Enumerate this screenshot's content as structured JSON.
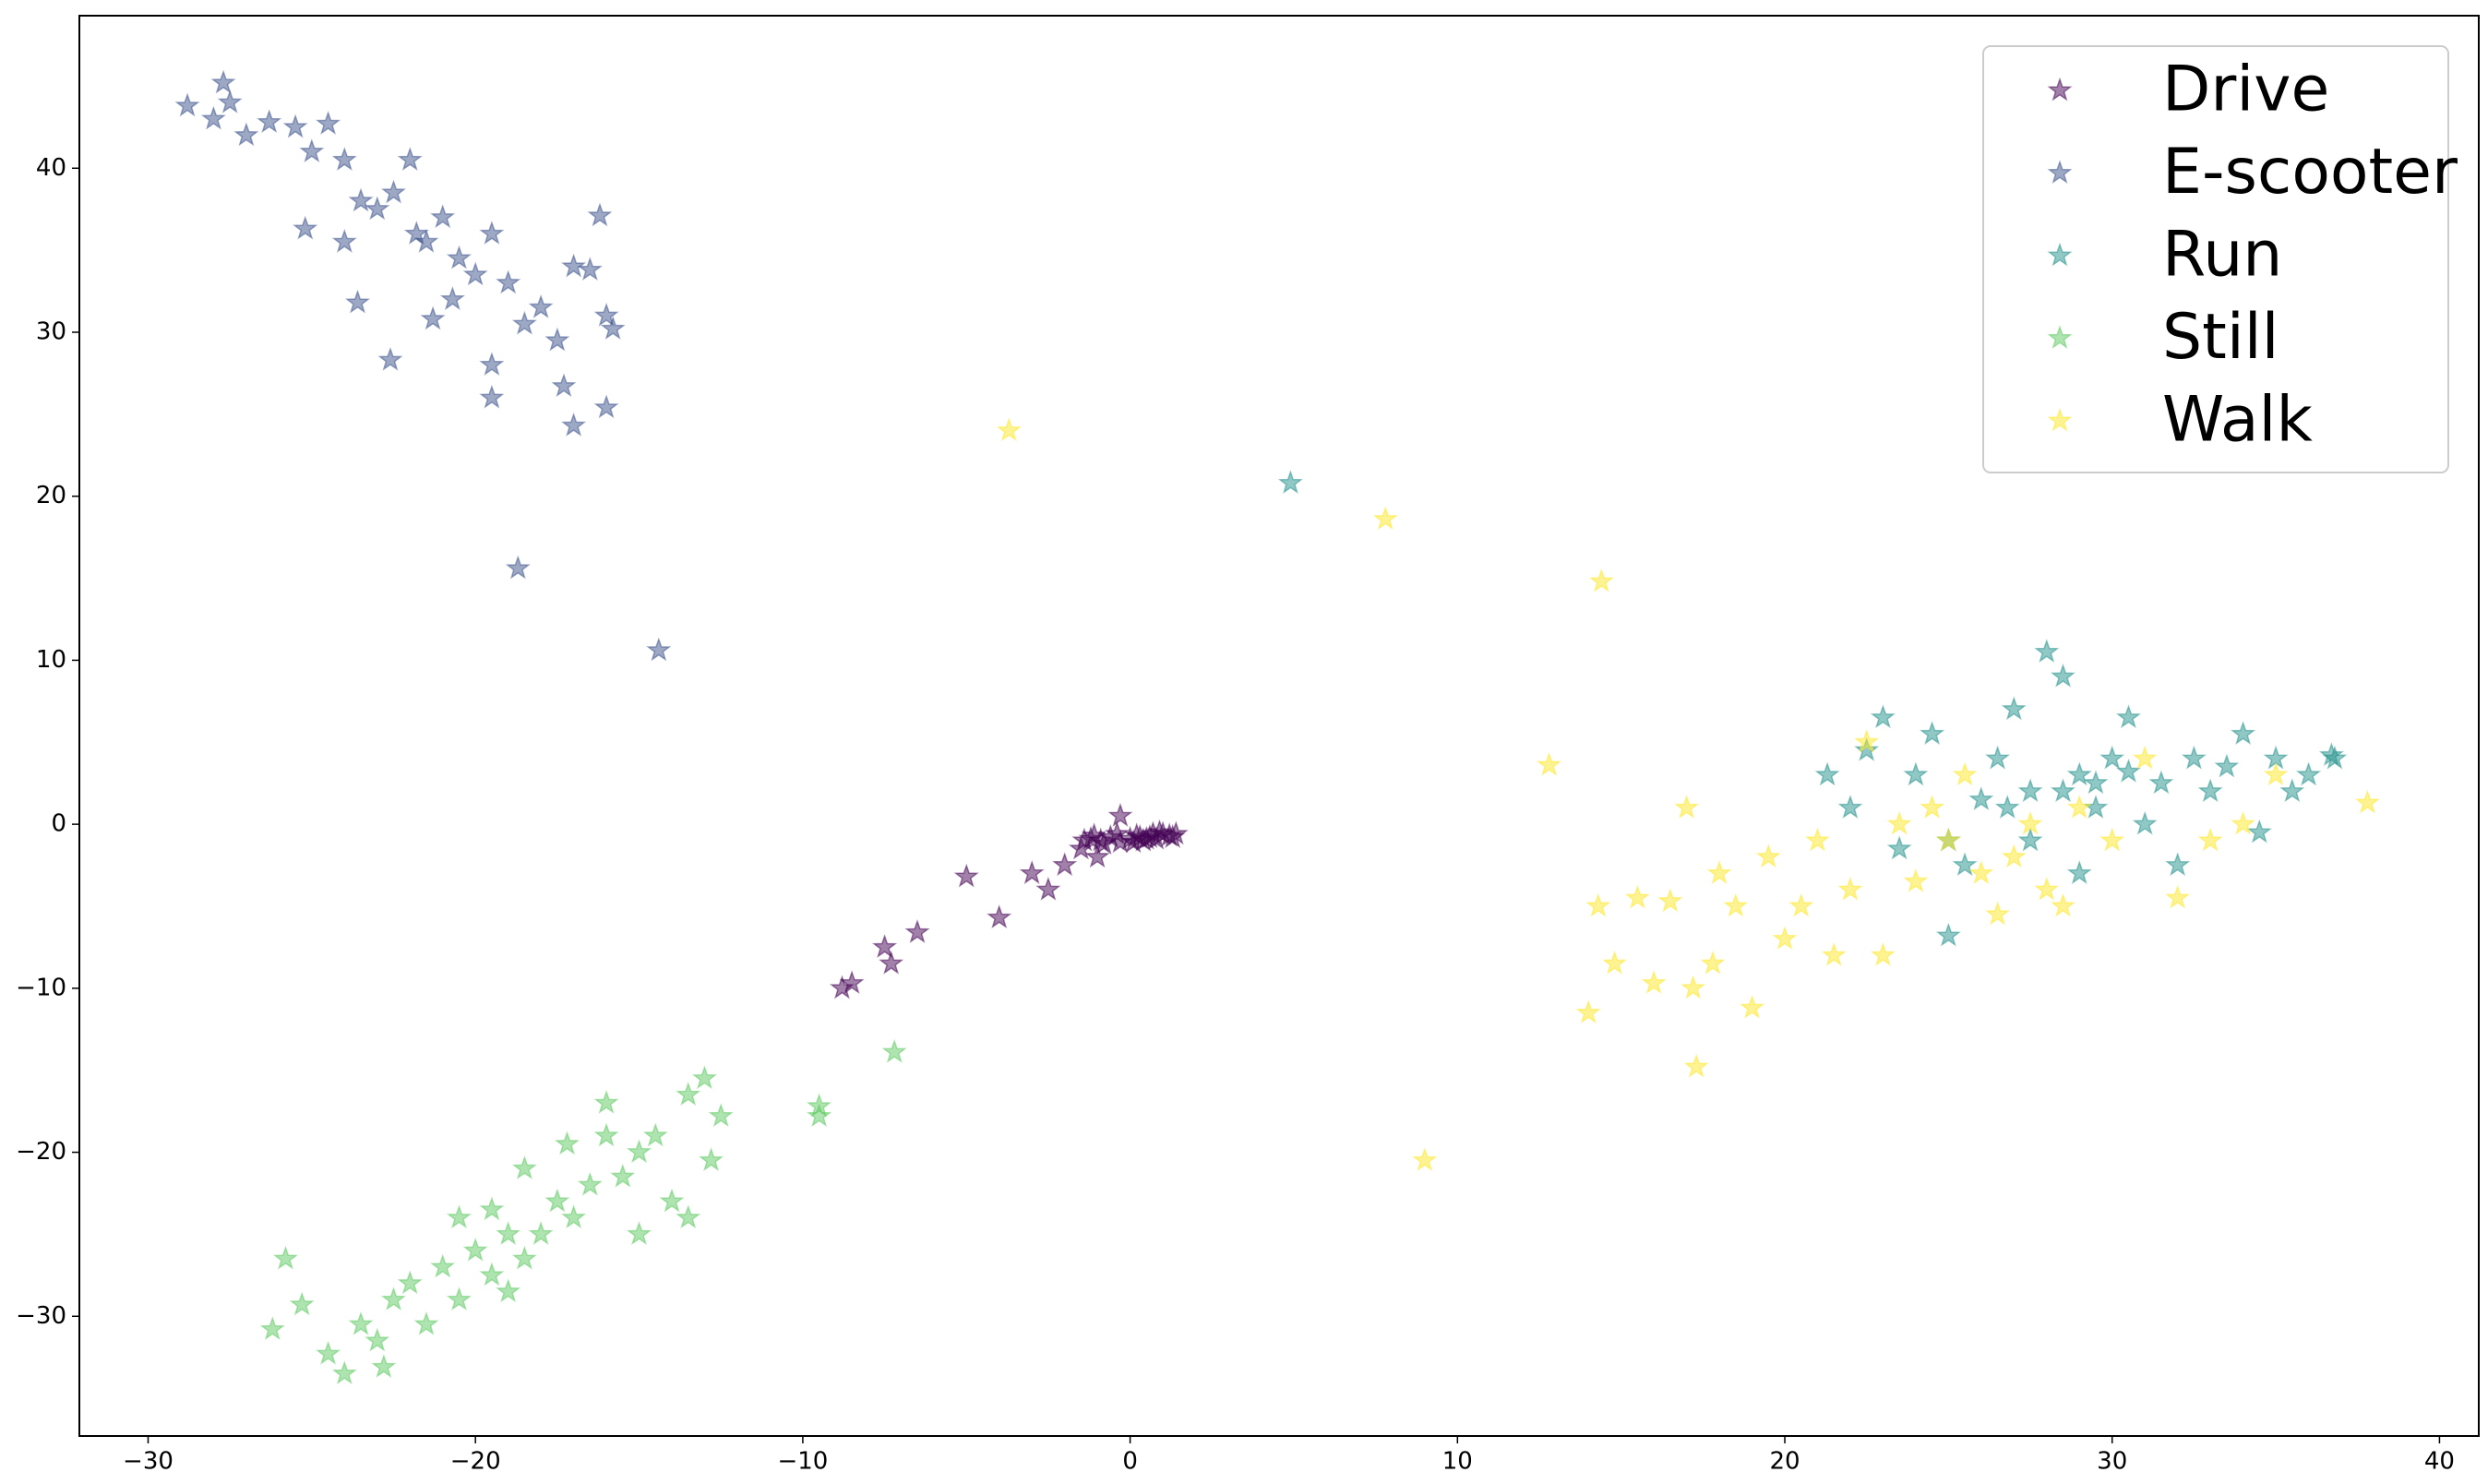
{
  "chart_data": {
    "type": "scatter",
    "xlim": [
      -32.1,
      41.2
    ],
    "ylim": [
      -37.3,
      49.3
    ],
    "xticks": [
      {
        "value": -30,
        "label": "−30"
      },
      {
        "value": -20,
        "label": "−20"
      },
      {
        "value": -10,
        "label": "−10"
      },
      0,
      10,
      20,
      30,
      40
    ],
    "yticks": [
      {
        "value": -30,
        "label": "−30"
      },
      {
        "value": -20,
        "label": "−20"
      },
      {
        "value": -10,
        "label": "−10"
      },
      0,
      10,
      20,
      30,
      40
    ],
    "legend": "upper right",
    "series": [
      {
        "name": "Drive",
        "color": "#440154",
        "x": [
          -0.3,
          -1.5,
          -2,
          -1,
          -2.5,
          -3,
          -5,
          -4,
          -6.5,
          -7.5,
          -7.3,
          -8.5,
          -8.8,
          -1.2,
          -0.9,
          -0.6,
          -0.3,
          0,
          0.2,
          0.4,
          0.6,
          0.8,
          1,
          1.2,
          1.4,
          -0.8,
          -0.4,
          0.1,
          0.5,
          0.9,
          1.3,
          -1.4,
          -1.1,
          0.3,
          0.7
        ],
        "values": [
          0.5,
          -1.5,
          -2.5,
          -2,
          -4,
          -3,
          -3.2,
          -5.7,
          -6.6,
          -7.5,
          -8.5,
          -9.7,
          -10,
          -0.9,
          -1,
          -0.8,
          -1.1,
          -0.9,
          -0.7,
          -1,
          -0.8,
          -0.9,
          -0.6,
          -0.7,
          -0.6,
          -1.2,
          -0.6,
          -1.1,
          -0.9,
          -0.5,
          -0.8,
          -1,
          -0.7,
          -0.8,
          -0.6
        ]
      },
      {
        "name": "E-scooter",
        "color": "#3b528b",
        "x": [
          -28.8,
          -27.7,
          -27.5,
          -28,
          -27,
          -26.3,
          -25.5,
          -25,
          -24.5,
          -24,
          -23.5,
          -23,
          -22.5,
          -22,
          -21.8,
          -21.5,
          -21,
          -20.5,
          -20,
          -19.5,
          -19,
          -18.5,
          -18,
          -17.5,
          -17,
          -16.5,
          -16.2,
          -16,
          -15.8,
          -16,
          -17,
          -17.3,
          -19.5,
          -22.6,
          -21.3,
          -23.6,
          -25.2,
          -24,
          -20.7,
          -19.5,
          -18.7,
          -14.4
        ],
        "values": [
          43.8,
          45.2,
          44,
          43,
          42,
          42.8,
          42.5,
          41,
          42.7,
          40.5,
          38,
          37.5,
          38.5,
          40.5,
          36,
          35.5,
          37,
          34.5,
          33.5,
          36,
          33,
          30.5,
          31.5,
          29.5,
          34,
          33.8,
          37.1,
          31,
          30.2,
          25.4,
          24.3,
          26.7,
          26,
          28.3,
          30.8,
          31.8,
          36.3,
          35.5,
          32,
          28,
          15.6,
          10.6
        ]
      },
      {
        "name": "Run",
        "color": "#21918c",
        "x": [
          4.9,
          21.3,
          22,
          22.5,
          23,
          23.5,
          24,
          24.5,
          25,
          25.5,
          25,
          26,
          26.5,
          27,
          27.5,
          28,
          28.5,
          29,
          29.5,
          30,
          30.5,
          31,
          31.5,
          32,
          32.5,
          33,
          33.5,
          34,
          34.5,
          35,
          35.5,
          36,
          36.7,
          36.8,
          28.5,
          29.5,
          30.5,
          27.5,
          29,
          26.8
        ],
        "values": [
          20.8,
          3,
          1,
          4.5,
          6.5,
          -1.5,
          3,
          5.5,
          -1,
          -2.5,
          -6.8,
          1.5,
          4,
          7,
          2,
          10.5,
          9,
          3,
          1,
          4,
          6.5,
          0,
          2.5,
          -2.5,
          4,
          2,
          3.5,
          5.5,
          -0.5,
          4,
          2,
          3,
          4.2,
          4,
          2,
          2.5,
          3.2,
          -1,
          -3,
          1
        ]
      },
      {
        "name": "Still",
        "color": "#5ec962",
        "x": [
          -26.2,
          -25.8,
          -25.3,
          -24.5,
          -24,
          -23.5,
          -23,
          -22.5,
          -22,
          -21.5,
          -21,
          -20.5,
          -20,
          -19.5,
          -19,
          -18.5,
          -18,
          -17.5,
          -17,
          -16.5,
          -16,
          -15.5,
          -15,
          -14.5,
          -14,
          -13.5,
          -13,
          -12.5,
          -12.8,
          -13.5,
          -15,
          -16,
          -17.2,
          -18.5,
          -19.5,
          -20.5,
          -22.8,
          -19,
          -9.5,
          -9.5,
          -7.2
        ],
        "values": [
          -30.8,
          -26.5,
          -29.3,
          -32.3,
          -33.5,
          -30.5,
          -31.5,
          -29,
          -28,
          -30.5,
          -27,
          -29,
          -26,
          -27.5,
          -25,
          -26.5,
          -25,
          -23,
          -24,
          -22,
          -19,
          -21.5,
          -20,
          -19,
          -23,
          -16.5,
          -15.5,
          -17.8,
          -20.5,
          -24,
          -25,
          -17,
          -19.5,
          -21,
          -23.5,
          -24,
          -33.1,
          -28.5,
          -17.2,
          -17.8,
          -13.9
        ]
      },
      {
        "name": "Walk",
        "color": "#fde725",
        "x": [
          -3.7,
          7.8,
          14.4,
          12.8,
          9,
          37.8,
          17.3,
          14,
          14.3,
          14.8,
          15.5,
          16,
          16.5,
          17,
          17.2,
          17.8,
          18,
          18.5,
          19,
          19.5,
          20,
          20.5,
          21,
          21.5,
          22,
          22.5,
          23,
          23.5,
          24,
          24.5,
          25,
          25.5,
          26,
          26.5,
          27,
          27.5,
          28,
          28.5,
          29,
          30,
          31,
          32,
          33,
          34,
          35
        ],
        "values": [
          24,
          18.6,
          14.8,
          3.6,
          -20.5,
          1.3,
          -14.8,
          -11.5,
          -5,
          -8.5,
          -4.5,
          -9.7,
          -4.7,
          1,
          -10,
          -8.5,
          -3,
          -5,
          -11.2,
          -2,
          -7,
          -5,
          -1,
          -8,
          -4,
          5,
          -8,
          0,
          -3.5,
          1,
          -1,
          3,
          -3,
          -5.5,
          -2,
          0,
          -4,
          -5,
          1,
          -1,
          4,
          -4.5,
          -1,
          0,
          3
        ]
      }
    ]
  }
}
